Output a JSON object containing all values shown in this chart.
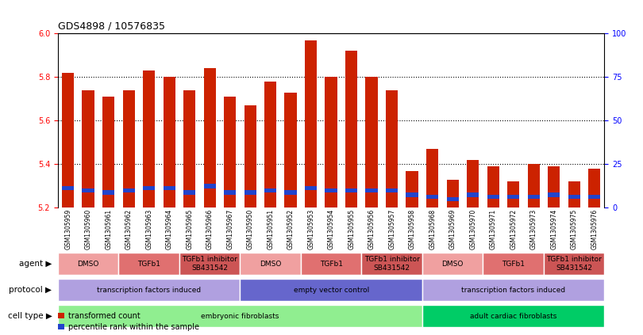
{
  "title": "GDS4898 / 10576835",
  "samples": [
    "GSM1305959",
    "GSM1305960",
    "GSM1305961",
    "GSM1305962",
    "GSM1305963",
    "GSM1305964",
    "GSM1305965",
    "GSM1305966",
    "GSM1305967",
    "GSM1305950",
    "GSM1305951",
    "GSM1305952",
    "GSM1305953",
    "GSM1305954",
    "GSM1305955",
    "GSM1305956",
    "GSM1305957",
    "GSM1305958",
    "GSM1305968",
    "GSM1305969",
    "GSM1305970",
    "GSM1305971",
    "GSM1305972",
    "GSM1305973",
    "GSM1305974",
    "GSM1305975",
    "GSM1305976"
  ],
  "red_values": [
    5.82,
    5.74,
    5.71,
    5.74,
    5.83,
    5.8,
    5.74,
    5.84,
    5.71,
    5.67,
    5.78,
    5.73,
    5.97,
    5.8,
    5.92,
    5.8,
    5.74,
    5.37,
    5.47,
    5.33,
    5.42,
    5.39,
    5.32,
    5.4,
    5.39,
    5.32,
    5.38
  ],
  "blue_values": [
    5.29,
    5.28,
    5.27,
    5.28,
    5.29,
    5.29,
    5.27,
    5.3,
    5.27,
    5.27,
    5.28,
    5.27,
    5.29,
    5.28,
    5.28,
    5.28,
    5.28,
    5.26,
    5.25,
    5.24,
    5.26,
    5.25,
    5.25,
    5.25,
    5.26,
    5.25,
    5.25
  ],
  "ymin": 5.2,
  "ymax": 6.0,
  "yticks_left": [
    5.2,
    5.4,
    5.6,
    5.8,
    6.0
  ],
  "yticks_right": [
    0,
    25,
    50,
    75,
    100
  ],
  "cell_type_groups": [
    {
      "label": "embryonic fibroblasts",
      "start": 0,
      "end": 18,
      "color": "#90ee90"
    },
    {
      "label": "adult cardiac fibroblasts",
      "start": 18,
      "end": 27,
      "color": "#00cc66"
    }
  ],
  "protocol_groups": [
    {
      "label": "transcription factors induced",
      "start": 0,
      "end": 9,
      "color": "#b0a0e0"
    },
    {
      "label": "empty vector control",
      "start": 9,
      "end": 18,
      "color": "#6666cc"
    },
    {
      "label": "transcription factors induced",
      "start": 18,
      "end": 27,
      "color": "#b0a0e0"
    }
  ],
  "agent_groups": [
    {
      "label": "DMSO",
      "start": 0,
      "end": 3,
      "color": "#f0a0a0"
    },
    {
      "label": "TGFb1",
      "start": 3,
      "end": 6,
      "color": "#e07070"
    },
    {
      "label": "TGFb1 inhibitor\nSB431542",
      "start": 6,
      "end": 9,
      "color": "#cc5555"
    },
    {
      "label": "DMSO",
      "start": 9,
      "end": 12,
      "color": "#f0a0a0"
    },
    {
      "label": "TGFb1",
      "start": 12,
      "end": 15,
      "color": "#e07070"
    },
    {
      "label": "TGFb1 inhibitor\nSB431542",
      "start": 15,
      "end": 18,
      "color": "#cc5555"
    },
    {
      "label": "DMSO",
      "start": 18,
      "end": 21,
      "color": "#f0a0a0"
    },
    {
      "label": "TGFb1",
      "start": 21,
      "end": 24,
      "color": "#e07070"
    },
    {
      "label": "TGFb1 inhibitor\nSB431542",
      "start": 24,
      "end": 27,
      "color": "#cc5555"
    }
  ],
  "bar_color": "#cc2200",
  "blue_color": "#2244cc",
  "background_color": "#ffffff",
  "row_labels": [
    "cell type",
    "protocol",
    "agent"
  ],
  "legend_items": [
    {
      "color": "#cc2200",
      "label": "transformed count"
    },
    {
      "color": "#2244cc",
      "label": "percentile rank within the sample"
    }
  ]
}
